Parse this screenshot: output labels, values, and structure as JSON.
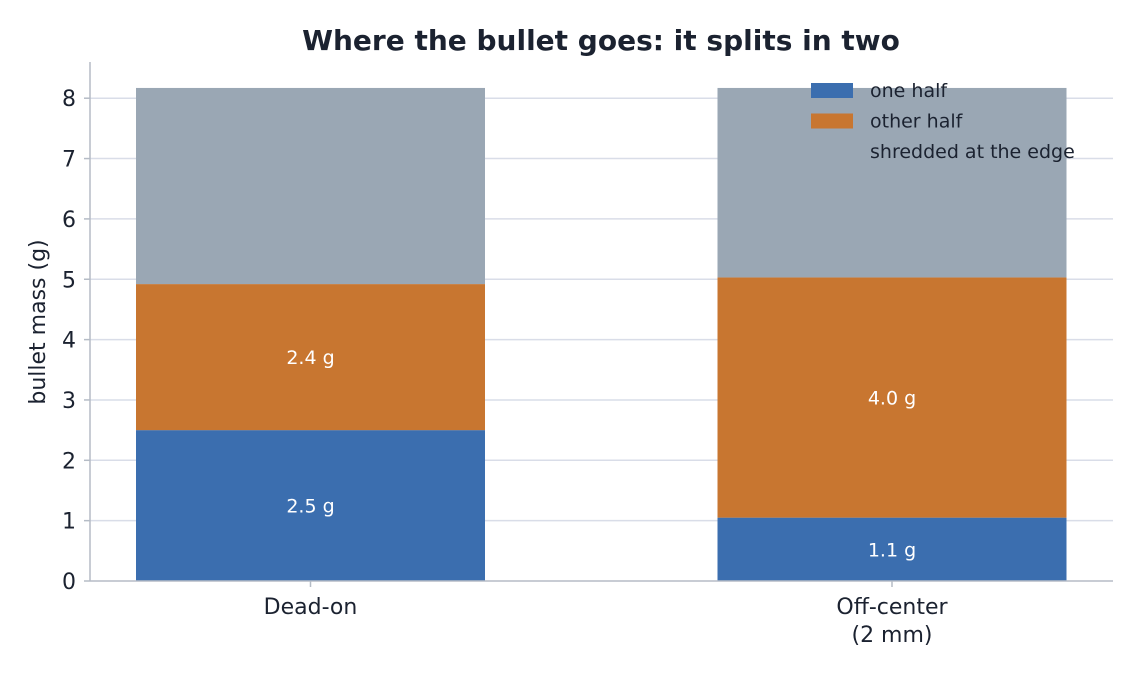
{
  "chart_data": {
    "type": "bar",
    "stacked": true,
    "title": "Where the bullet goes: it splits in two",
    "xlabel": "",
    "ylabel": "bullet mass (g)",
    "categories": [
      "Dead-on",
      "Off-center\n(2 mm)"
    ],
    "category_lines": [
      [
        "Dead-on"
      ],
      [
        "Off-center",
        "(2 mm)"
      ]
    ],
    "ylim": [
      0,
      8.6
    ],
    "yticks": [
      0,
      1,
      2,
      3,
      4,
      5,
      6,
      7,
      8
    ],
    "grid": "horizontal",
    "legend_position": "top-right",
    "series": [
      {
        "name": "one half",
        "values": [
          2.5,
          1.05
        ],
        "labels": [
          "2.5 g",
          "1.1 g"
        ],
        "color": "#3b6eaf"
      },
      {
        "name": "other half",
        "values": [
          2.42,
          3.98
        ],
        "labels": [
          "2.4 g",
          "4.0 g"
        ],
        "color": "#c87630"
      },
      {
        "name": "shredded at the edge",
        "values": [
          3.25,
          3.14
        ],
        "labels": [
          "",
          ""
        ],
        "color": "#9aa7b4"
      }
    ]
  }
}
